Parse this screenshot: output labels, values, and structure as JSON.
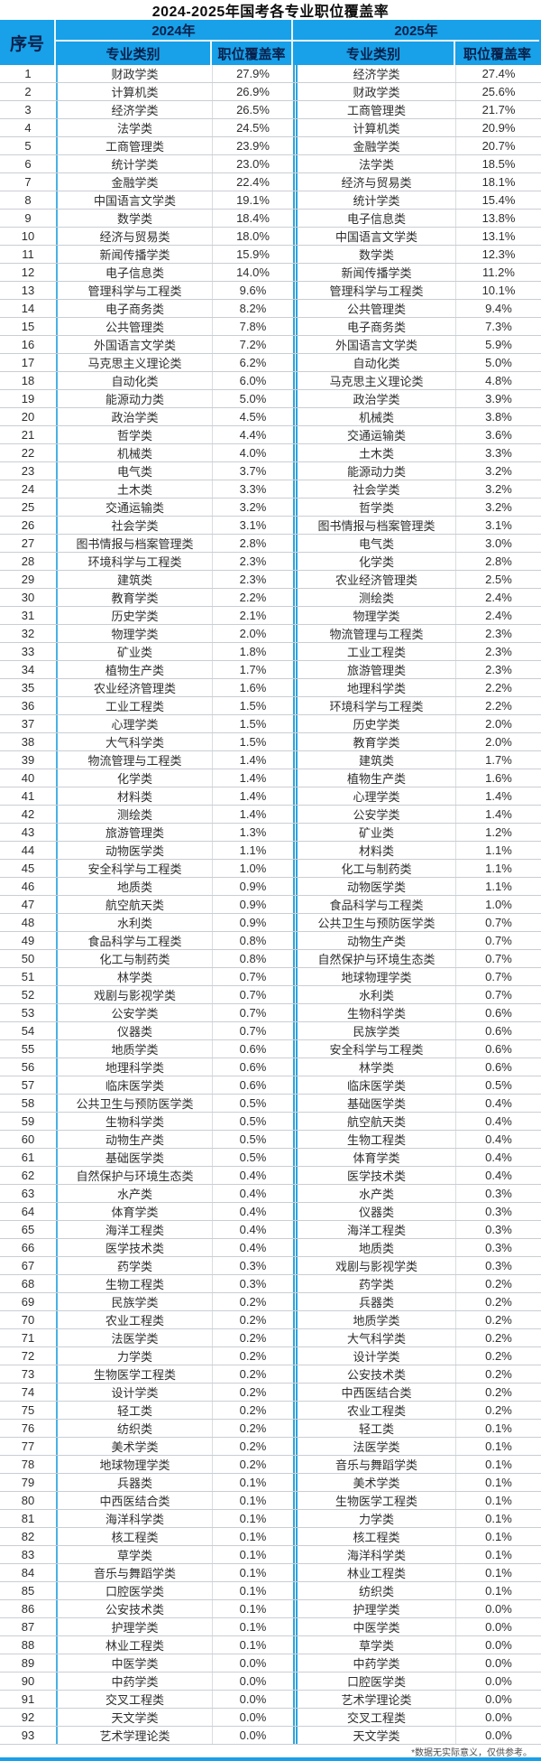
{
  "title": "2024-2025年国考各专业职位覆盖率",
  "header": {
    "index_label": "序号",
    "year_2024": "2024年",
    "year_2025": "2025年",
    "major_label": "专业类别",
    "rate_label": "职位覆盖率"
  },
  "footnote": "*数据无实际意义，仅供参考。",
  "colors": {
    "header_bg": "#18a0e8",
    "header_text": "#08204a",
    "column_separator_blue": "#49b0e4",
    "middle_double_line": "#2fa3dc",
    "grid_line": "#c9ced4",
    "bottom_bar": "#18a0e8"
  },
  "chart_data": {
    "type": "table",
    "title": "2024-2025年国考各专业职位覆盖率",
    "columns": [
      "序号",
      "2024年 专业类别",
      "2024年 职位覆盖率",
      "2025年 专业类别",
      "2025年 职位覆盖率"
    ],
    "rows": [
      [
        1,
        "财政学类",
        "27.9%",
        "经济学类",
        "27.4%"
      ],
      [
        2,
        "计算机类",
        "26.9%",
        "财政学类",
        "25.6%"
      ],
      [
        3,
        "经济学类",
        "26.5%",
        "工商管理类",
        "21.7%"
      ],
      [
        4,
        "法学类",
        "24.5%",
        "计算机类",
        "20.9%"
      ],
      [
        5,
        "工商管理类",
        "23.9%",
        "金融学类",
        "20.7%"
      ],
      [
        6,
        "统计学类",
        "23.0%",
        "法学类",
        "18.5%"
      ],
      [
        7,
        "金融学类",
        "22.4%",
        "经济与贸易类",
        "18.1%"
      ],
      [
        8,
        "中国语言文学类",
        "19.1%",
        "统计学类",
        "15.4%"
      ],
      [
        9,
        "数学类",
        "18.4%",
        "电子信息类",
        "13.8%"
      ],
      [
        10,
        "经济与贸易类",
        "18.0%",
        "中国语言文学类",
        "13.1%"
      ],
      [
        11,
        "新闻传播学类",
        "15.9%",
        "数学类",
        "12.3%"
      ],
      [
        12,
        "电子信息类",
        "14.0%",
        "新闻传播学类",
        "11.2%"
      ],
      [
        13,
        "管理科学与工程类",
        "9.6%",
        "管理科学与工程类",
        "10.1%"
      ],
      [
        14,
        "电子商务类",
        "8.2%",
        "公共管理类",
        "9.4%"
      ],
      [
        15,
        "公共管理类",
        "7.8%",
        "电子商务类",
        "7.3%"
      ],
      [
        16,
        "外国语言文学类",
        "7.2%",
        "外国语言文学类",
        "5.9%"
      ],
      [
        17,
        "马克思主义理论类",
        "6.2%",
        "自动化类",
        "5.0%"
      ],
      [
        18,
        "自动化类",
        "6.0%",
        "马克思主义理论类",
        "4.8%"
      ],
      [
        19,
        "能源动力类",
        "5.0%",
        "政治学类",
        "3.9%"
      ],
      [
        20,
        "政治学类",
        "4.5%",
        "机械类",
        "3.8%"
      ],
      [
        21,
        "哲学类",
        "4.4%",
        "交通运输类",
        "3.6%"
      ],
      [
        22,
        "机械类",
        "4.0%",
        "土木类",
        "3.3%"
      ],
      [
        23,
        "电气类",
        "3.7%",
        "能源动力类",
        "3.2%"
      ],
      [
        24,
        "土木类",
        "3.3%",
        "社会学类",
        "3.2%"
      ],
      [
        25,
        "交通运输类",
        "3.2%",
        "哲学类",
        "3.2%"
      ],
      [
        26,
        "社会学类",
        "3.1%",
        "图书情报与档案管理类",
        "3.1%"
      ],
      [
        27,
        "图书情报与档案管理类",
        "2.8%",
        "电气类",
        "3.0%"
      ],
      [
        28,
        "环境科学与工程类",
        "2.3%",
        "化学类",
        "2.8%"
      ],
      [
        29,
        "建筑类",
        "2.3%",
        "农业经济管理类",
        "2.5%"
      ],
      [
        30,
        "教育学类",
        "2.2%",
        "测绘类",
        "2.4%"
      ],
      [
        31,
        "历史学类",
        "2.1%",
        "物理学类",
        "2.4%"
      ],
      [
        32,
        "物理学类",
        "2.0%",
        "物流管理与工程类",
        "2.3%"
      ],
      [
        33,
        "矿业类",
        "1.8%",
        "工业工程类",
        "2.3%"
      ],
      [
        34,
        "植物生产类",
        "1.7%",
        "旅游管理类",
        "2.3%"
      ],
      [
        35,
        "农业经济管理类",
        "1.6%",
        "地理科学类",
        "2.2%"
      ],
      [
        36,
        "工业工程类",
        "1.5%",
        "环境科学与工程类",
        "2.2%"
      ],
      [
        37,
        "心理学类",
        "1.5%",
        "历史学类",
        "2.0%"
      ],
      [
        38,
        "大气科学类",
        "1.5%",
        "教育学类",
        "2.0%"
      ],
      [
        39,
        "物流管理与工程类",
        "1.4%",
        "建筑类",
        "1.7%"
      ],
      [
        40,
        "化学类",
        "1.4%",
        "植物生产类",
        "1.6%"
      ],
      [
        41,
        "材料类",
        "1.4%",
        "心理学类",
        "1.4%"
      ],
      [
        42,
        "测绘类",
        "1.4%",
        "公安学类",
        "1.4%"
      ],
      [
        43,
        "旅游管理类",
        "1.3%",
        "矿业类",
        "1.2%"
      ],
      [
        44,
        "动物医学类",
        "1.1%",
        "材料类",
        "1.1%"
      ],
      [
        45,
        "安全科学与工程类",
        "1.0%",
        "化工与制药类",
        "1.1%"
      ],
      [
        46,
        "地质类",
        "0.9%",
        "动物医学类",
        "1.1%"
      ],
      [
        47,
        "航空航天类",
        "0.9%",
        "食品科学与工程类",
        "1.0%"
      ],
      [
        48,
        "水利类",
        "0.9%",
        "公共卫生与预防医学类",
        "0.7%"
      ],
      [
        49,
        "食品科学与工程类",
        "0.8%",
        "动物生产类",
        "0.7%"
      ],
      [
        50,
        "化工与制药类",
        "0.8%",
        "自然保护与环境生态类",
        "0.7%"
      ],
      [
        51,
        "林学类",
        "0.7%",
        "地球物理学类",
        "0.7%"
      ],
      [
        52,
        "戏剧与影视学类",
        "0.7%",
        "水利类",
        "0.7%"
      ],
      [
        53,
        "公安学类",
        "0.7%",
        "生物科学类",
        "0.6%"
      ],
      [
        54,
        "仪器类",
        "0.7%",
        "民族学类",
        "0.6%"
      ],
      [
        55,
        "地质学类",
        "0.6%",
        "安全科学与工程类",
        "0.6%"
      ],
      [
        56,
        "地理科学类",
        "0.6%",
        "林学类",
        "0.6%"
      ],
      [
        57,
        "临床医学类",
        "0.6%",
        "临床医学类",
        "0.5%"
      ],
      [
        58,
        "公共卫生与预防医学类",
        "0.5%",
        "基础医学类",
        "0.4%"
      ],
      [
        59,
        "生物科学类",
        "0.5%",
        "航空航天类",
        "0.4%"
      ],
      [
        60,
        "动物生产类",
        "0.5%",
        "生物工程类",
        "0.4%"
      ],
      [
        61,
        "基础医学类",
        "0.5%",
        "体育学类",
        "0.4%"
      ],
      [
        62,
        "自然保护与环境生态类",
        "0.4%",
        "医学技术类",
        "0.4%"
      ],
      [
        63,
        "水产类",
        "0.4%",
        "水产类",
        "0.3%"
      ],
      [
        64,
        "体育学类",
        "0.4%",
        "仪器类",
        "0.3%"
      ],
      [
        65,
        "海洋工程类",
        "0.4%",
        "海洋工程类",
        "0.3%"
      ],
      [
        66,
        "医学技术类",
        "0.4%",
        "地质类",
        "0.3%"
      ],
      [
        67,
        "药学类",
        "0.3%",
        "戏剧与影视学类",
        "0.3%"
      ],
      [
        68,
        "生物工程类",
        "0.3%",
        "药学类",
        "0.2%"
      ],
      [
        69,
        "民族学类",
        "0.2%",
        "兵器类",
        "0.2%"
      ],
      [
        70,
        "农业工程类",
        "0.2%",
        "地质学类",
        "0.2%"
      ],
      [
        71,
        "法医学类",
        "0.2%",
        "大气科学类",
        "0.2%"
      ],
      [
        72,
        "力学类",
        "0.2%",
        "设计学类",
        "0.2%"
      ],
      [
        73,
        "生物医学工程类",
        "0.2%",
        "公安技术类",
        "0.2%"
      ],
      [
        74,
        "设计学类",
        "0.2%",
        "中西医结合类",
        "0.2%"
      ],
      [
        75,
        "轻工类",
        "0.2%",
        "农业工程类",
        "0.2%"
      ],
      [
        76,
        "纺织类",
        "0.2%",
        "轻工类",
        "0.1%"
      ],
      [
        77,
        "美术学类",
        "0.2%",
        "法医学类",
        "0.1%"
      ],
      [
        78,
        "地球物理学类",
        "0.2%",
        "音乐与舞蹈学类",
        "0.1%"
      ],
      [
        79,
        "兵器类",
        "0.1%",
        "美术学类",
        "0.1%"
      ],
      [
        80,
        "中西医结合类",
        "0.1%",
        "生物医学工程类",
        "0.1%"
      ],
      [
        81,
        "海洋科学类",
        "0.1%",
        "力学类",
        "0.1%"
      ],
      [
        82,
        "核工程类",
        "0.1%",
        "核工程类",
        "0.1%"
      ],
      [
        83,
        "草学类",
        "0.1%",
        "海洋科学类",
        "0.1%"
      ],
      [
        84,
        "音乐与舞蹈学类",
        "0.1%",
        "林业工程类",
        "0.1%"
      ],
      [
        85,
        "口腔医学类",
        "0.1%",
        "纺织类",
        "0.1%"
      ],
      [
        86,
        "公安技术类",
        "0.1%",
        "护理学类",
        "0.0%"
      ],
      [
        87,
        "护理学类",
        "0.1%",
        "中医学类",
        "0.0%"
      ],
      [
        88,
        "林业工程类",
        "0.1%",
        "草学类",
        "0.0%"
      ],
      [
        89,
        "中医学类",
        "0.0%",
        "中药学类",
        "0.0%"
      ],
      [
        90,
        "中药学类",
        "0.0%",
        "口腔医学类",
        "0.0%"
      ],
      [
        91,
        "交叉工程类",
        "0.0%",
        "艺术学理论类",
        "0.0%"
      ],
      [
        92,
        "天文学类",
        "0.0%",
        "交叉工程类",
        "0.0%"
      ],
      [
        93,
        "艺术学理论类",
        "0.0%",
        "天文学类",
        "0.0%"
      ]
    ]
  }
}
